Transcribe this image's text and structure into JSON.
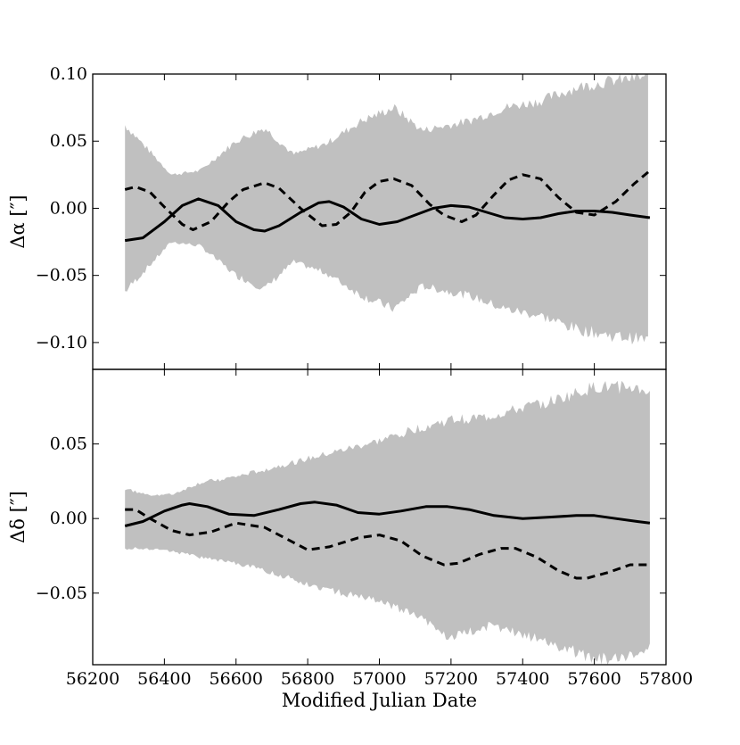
{
  "chart_data": [
    {
      "type": "line",
      "panel": "top",
      "ylabel": "Δα [″]",
      "xlim": [
        56200,
        57800
      ],
      "ylim": [
        -0.12,
        0.1
      ],
      "yticks": [
        -0.1,
        -0.05,
        0.0,
        0.05,
        0.1
      ],
      "ytick_labels": [
        "−0.10",
        "−0.05",
        "0.00",
        "0.05",
        "0.10"
      ],
      "xticks": [
        56200,
        56400,
        56600,
        56800,
        57000,
        57200,
        57400,
        57600,
        57800
      ],
      "band": {
        "name": "uncertainty band",
        "color": "#c0c0c0",
        "x": [
          56290,
          56350,
          56420,
          56500,
          56600,
          56680,
          56760,
          56850,
          56950,
          57040,
          57120,
          57250,
          57350,
          57450,
          57550,
          57650,
          57750
        ],
        "upper": [
          0.062,
          0.045,
          0.025,
          0.028,
          0.05,
          0.06,
          0.04,
          0.048,
          0.065,
          0.075,
          0.058,
          0.065,
          0.075,
          0.08,
          0.09,
          0.095,
          0.098
        ],
        "lower": [
          -0.062,
          -0.045,
          -0.025,
          -0.028,
          -0.05,
          -0.06,
          -0.04,
          -0.048,
          -0.065,
          -0.075,
          -0.058,
          -0.065,
          -0.075,
          -0.08,
          -0.09,
          -0.095,
          -0.098
        ]
      },
      "series": [
        {
          "name": "solid",
          "style": "solid",
          "x": [
            56290,
            56340,
            56400,
            56450,
            56495,
            56550,
            56600,
            56650,
            56680,
            56720,
            56780,
            56830,
            56860,
            56900,
            56950,
            57000,
            57050,
            57100,
            57150,
            57200,
            57250,
            57300,
            57350,
            57400,
            57450,
            57500,
            57550,
            57600,
            57650,
            57700,
            57755
          ],
          "y": [
            -0.024,
            -0.022,
            -0.01,
            0.002,
            0.007,
            0.002,
            -0.01,
            -0.016,
            -0.017,
            -0.013,
            -0.003,
            0.004,
            0.005,
            0.001,
            -0.008,
            -0.012,
            -0.01,
            -0.005,
            0.0,
            0.002,
            0.001,
            -0.003,
            -0.007,
            -0.008,
            -0.007,
            -0.004,
            -0.002,
            -0.002,
            -0.003,
            -0.005,
            -0.007
          ]
        },
        {
          "name": "dashed",
          "style": "dashed",
          "x": [
            56290,
            56320,
            56360,
            56400,
            56450,
            56480,
            56530,
            56580,
            56620,
            56680,
            56720,
            56780,
            56840,
            56880,
            56920,
            56960,
            57000,
            57040,
            57090,
            57140,
            57180,
            57230,
            57270,
            57320,
            57360,
            57400,
            57450,
            57500,
            57550,
            57600,
            57660,
            57710,
            57755
          ],
          "y": [
            0.014,
            0.016,
            0.012,
            0.001,
            -0.012,
            -0.016,
            -0.01,
            0.005,
            0.014,
            0.019,
            0.015,
            0.0,
            -0.013,
            -0.012,
            -0.003,
            0.012,
            0.02,
            0.022,
            0.017,
            0.003,
            -0.005,
            -0.01,
            -0.005,
            0.01,
            0.021,
            0.025,
            0.022,
            0.008,
            -0.003,
            -0.005,
            0.005,
            0.018,
            0.028
          ]
        }
      ]
    },
    {
      "type": "line",
      "panel": "bottom",
      "xlabel": "Modified Julian Date",
      "ylabel": "Δδ [″]",
      "xlim": [
        56200,
        57800
      ],
      "ylim": [
        -0.098,
        0.1
      ],
      "yticks": [
        -0.05,
        0.0,
        0.05
      ],
      "ytick_labels": [
        "−0.05",
        "0.00",
        "0.05"
      ],
      "xticks": [
        56200,
        56400,
        56600,
        56800,
        57000,
        57200,
        57400,
        57600,
        57800
      ],
      "xtick_labels": [
        "56200",
        "56400",
        "56600",
        "56800",
        "57000",
        "57200",
        "57400",
        "57600",
        "57800"
      ],
      "band": {
        "name": "uncertainty band",
        "color": "#c0c0c0",
        "x": [
          56290,
          56350,
          56420,
          56500,
          56600,
          56700,
          56800,
          56900,
          57000,
          57100,
          57200,
          57300,
          57400,
          57500,
          57600,
          57700,
          57755
        ],
        "upper": [
          0.02,
          0.016,
          0.016,
          0.024,
          0.028,
          0.034,
          0.04,
          0.046,
          0.052,
          0.06,
          0.066,
          0.068,
          0.074,
          0.08,
          0.088,
          0.088,
          0.085
        ],
        "lower": [
          -0.02,
          -0.02,
          -0.022,
          -0.026,
          -0.03,
          -0.036,
          -0.044,
          -0.05,
          -0.056,
          -0.064,
          -0.08,
          -0.072,
          -0.078,
          -0.085,
          -0.095,
          -0.092,
          -0.085
        ]
      },
      "series": [
        {
          "name": "solid",
          "style": "solid",
          "x": [
            56290,
            56340,
            56400,
            56450,
            56470,
            56520,
            56580,
            56650,
            56720,
            56780,
            56820,
            56880,
            56940,
            57000,
            57060,
            57130,
            57190,
            57250,
            57320,
            57400,
            57480,
            57550,
            57600,
            57660,
            57720,
            57755
          ],
          "y": [
            -0.005,
            -0.002,
            0.005,
            0.009,
            0.01,
            0.008,
            0.003,
            0.002,
            0.006,
            0.01,
            0.011,
            0.009,
            0.004,
            0.003,
            0.005,
            0.008,
            0.008,
            0.006,
            0.002,
            0.0,
            0.001,
            0.002,
            0.002,
            0.0,
            -0.002,
            -0.003
          ]
        },
        {
          "name": "dashed",
          "style": "dashed",
          "x": [
            56290,
            56320,
            56360,
            56420,
            56470,
            56530,
            56600,
            56680,
            56760,
            56800,
            56860,
            56940,
            57000,
            57060,
            57120,
            57180,
            57220,
            57280,
            57340,
            57380,
            57440,
            57500,
            57550,
            57580,
            57640,
            57700,
            57755
          ],
          "y": [
            0.006,
            0.006,
            0.0,
            -0.008,
            -0.011,
            -0.009,
            -0.003,
            -0.006,
            -0.016,
            -0.021,
            -0.019,
            -0.013,
            -0.011,
            -0.015,
            -0.025,
            -0.031,
            -0.03,
            -0.024,
            -0.02,
            -0.02,
            -0.026,
            -0.035,
            -0.04,
            -0.04,
            -0.036,
            -0.031,
            -0.031
          ]
        }
      ]
    }
  ]
}
